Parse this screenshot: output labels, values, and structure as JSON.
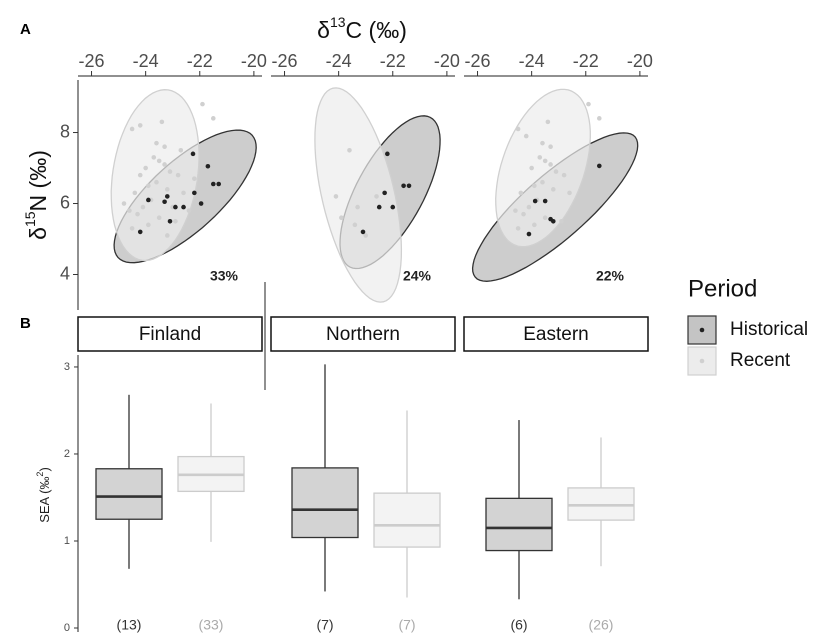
{
  "chart_data": [
    {
      "type": "scatter",
      "panel_label": "A",
      "xlabel": {
        "symbol": "δ",
        "sup": "13",
        "text": "C (‰)"
      },
      "ylabel": {
        "symbol": "δ",
        "sup": "15",
        "text": "N (‰)"
      },
      "xlim": [
        -26.5,
        -19.7
      ],
      "xticks": [
        -26,
        -24,
        -22,
        -20
      ],
      "ylim": [
        3,
        9.48
      ],
      "yticks": [
        4,
        6,
        8
      ],
      "legend": {
        "title": "Period",
        "position": "right"
      },
      "facets": [
        {
          "name": "Finland",
          "overlap": "33%",
          "series": [
            {
              "name": "Historical",
              "color": "#c4c4c4",
              "edgecolor": "#333333",
              "point_color": "#222222",
              "ellipse": {
                "center": [
                  -22.54,
                  6.2
                ],
                "axes": [
                  [
                    2.48,
                    1.72
                  ],
                  [
                    -0.86,
                    0.73
                  ]
                ]
              },
              "x": [
                -24.2,
                -23.9,
                -23.3,
                -23.1,
                -22.9,
                -22.6,
                -22.25,
                -21.7,
                -21.5,
                -21.3,
                -21.95,
                -22.2,
                -23.2
              ],
              "y": [
                5.2,
                6.1,
                6.05,
                5.5,
                5.9,
                5.9,
                7.4,
                7.05,
                6.55,
                6.55,
                6.0,
                6.3,
                6.2
              ]
            },
            {
              "name": "Recent",
              "color": "#ececec",
              "edgecolor": "#d0d0d0",
              "point_color": "#d0d0d0",
              "ellipse": {
                "center": [
                  -23.65,
                  6.8
                ],
                "axes": [
                  [
                    0.48,
                    2.4
                  ],
                  [
                    1.55,
                    -0.17
                  ]
                ]
              },
              "x": [
                -24.5,
                -24.2,
                -23.4,
                -21.9,
                -21.5,
                -23.6,
                -23.3,
                -23.7,
                -23.5,
                -23.3,
                -24.0,
                -23.1,
                -22.8,
                -23.6,
                -23.9,
                -23.2,
                -24.4,
                -22.6,
                -23.8,
                -24.1,
                -24.6,
                -24.3,
                -23.5,
                -22.9,
                -23.9,
                -24.5,
                -23.2,
                -22.4,
                -24.8,
                -22.2,
                -23.0,
                -24.2,
                -22.7
              ],
              "y": [
                8.1,
                8.2,
                8.3,
                8.8,
                8.4,
                7.7,
                7.6,
                7.3,
                7.2,
                7.1,
                7.0,
                6.9,
                6.8,
                6.6,
                6.5,
                6.4,
                6.3,
                6.3,
                6.1,
                5.9,
                5.8,
                5.7,
                5.6,
                5.5,
                5.4,
                5.3,
                5.1,
                5.8,
                6.0,
                6.7,
                5.9,
                6.8,
                7.5
              ]
            }
          ]
        },
        {
          "name": "Northern",
          "overlap": "24%",
          "series": [
            {
              "name": "Historical",
              "color": "#c4c4c4",
              "edgecolor": "#333333",
              "point_color": "#222222",
              "ellipse": {
                "center": [
                  -22.1,
                  6.32
                ],
                "axes": [
                  [
                    1.48,
                    2.11
                  ],
                  [
                    -1.11,
                    0.42
                  ]
                ]
              },
              "x": [
                -22.2,
                -22.3,
                -22.5,
                -23.1,
                -21.6,
                -21.4,
                -22.0
              ],
              "y": [
                7.4,
                6.3,
                5.9,
                5.2,
                6.5,
                6.5,
                5.9
              ]
            },
            {
              "name": "Recent",
              "color": "#ececec",
              "edgecolor": "#d0d0d0",
              "point_color": "#d0d0d0",
              "ellipse": {
                "center": [
                  -23.28,
                  6.24
                ],
                "axes": [
                  [
                    -0.93,
                    3.01
                  ],
                  [
                    1.3,
                    0.23
                  ]
                ]
              },
              "x": [
                -23.6,
                -24.1,
                -23.3,
                -23.0,
                -22.6,
                -23.4,
                -23.9
              ],
              "y": [
                7.5,
                6.2,
                5.9,
                5.1,
                6.2,
                5.4,
                5.6
              ]
            }
          ]
        },
        {
          "name": "Eastern",
          "overlap": "22%",
          "series": [
            {
              "name": "Historical",
              "color": "#c4c4c4",
              "edgecolor": "#333333",
              "point_color": "#222222",
              "ellipse": {
                "center": [
                  -23.13,
                  5.9
                ],
                "axes": [
                  [
                    2.96,
                    1.97
                  ],
                  [
                    -0.74,
                    0.7
                  ]
                ]
              },
              "x": [
                -23.87,
                -23.5,
                -23.3,
                -24.1,
                -23.2,
                -21.5
              ],
              "y": [
                6.07,
                6.07,
                5.56,
                5.14,
                5.5,
                7.06
              ]
            },
            {
              "name": "Recent",
              "color": "#ececec",
              "edgecolor": "#d0d0d0",
              "point_color": "#d0d0d0",
              "ellipse": {
                "center": [
                  -23.58,
                  7.0
                ],
                "axes": [
                  [
                    0.93,
                    2.2
                  ],
                  [
                    1.48,
                    -0.28
                  ]
                ]
              },
              "x": [
                -24.5,
                -24.2,
                -23.4,
                -21.9,
                -21.5,
                -23.6,
                -23.3,
                -23.7,
                -23.5,
                -23.3,
                -24.0,
                -23.1,
                -22.8,
                -23.6,
                -23.9,
                -23.2,
                -24.4,
                -22.6,
                -23.8,
                -24.1,
                -24.6,
                -24.3,
                -23.5,
                -22.9,
                -23.9,
                -24.5
              ],
              "y": [
                8.1,
                7.9,
                8.3,
                8.8,
                8.4,
                7.7,
                7.6,
                7.3,
                7.2,
                7.1,
                7.0,
                6.9,
                6.8,
                6.6,
                6.5,
                6.4,
                6.3,
                6.3,
                6.1,
                5.9,
                5.8,
                5.7,
                5.6,
                5.5,
                5.4,
                5.3
              ]
            }
          ]
        }
      ]
    },
    {
      "type": "box",
      "panel_label": "B",
      "ylabel": {
        "text": "SEA (‰",
        "sup": "2",
        "close": ")"
      },
      "ylim": [
        0,
        3.08
      ],
      "yticks": [
        0,
        1,
        2,
        3
      ],
      "series": [
        {
          "color": "#d3d3d3",
          "edgecolor": "#333333",
          "whislo": [
            0.68,
            0.42,
            0.33
          ],
          "q1": [
            1.25,
            1.04,
            0.89
          ],
          "med": [
            1.51,
            1.36,
            1.15
          ],
          "q3": [
            1.83,
            1.84,
            1.49
          ],
          "whishi": [
            2.68,
            3.03,
            2.39
          ],
          "n": [
            13,
            7,
            6
          ],
          "n_labels": [
            "(13)",
            "(7)",
            "(6)"
          ]
        },
        {
          "color": "#f3f3f3",
          "edgecolor": "#cccccc",
          "whislo": [
            0.99,
            0.35,
            0.71
          ],
          "q1": [
            1.57,
            0.93,
            1.24
          ],
          "med": [
            1.76,
            1.18,
            1.41
          ],
          "q3": [
            1.97,
            1.55,
            1.61
          ],
          "whishi": [
            2.58,
            2.5,
            2.19
          ],
          "n": [
            33,
            7,
            26
          ],
          "n_labels": [
            "(33)",
            "(7)",
            "(26)"
          ]
        }
      ]
    }
  ]
}
